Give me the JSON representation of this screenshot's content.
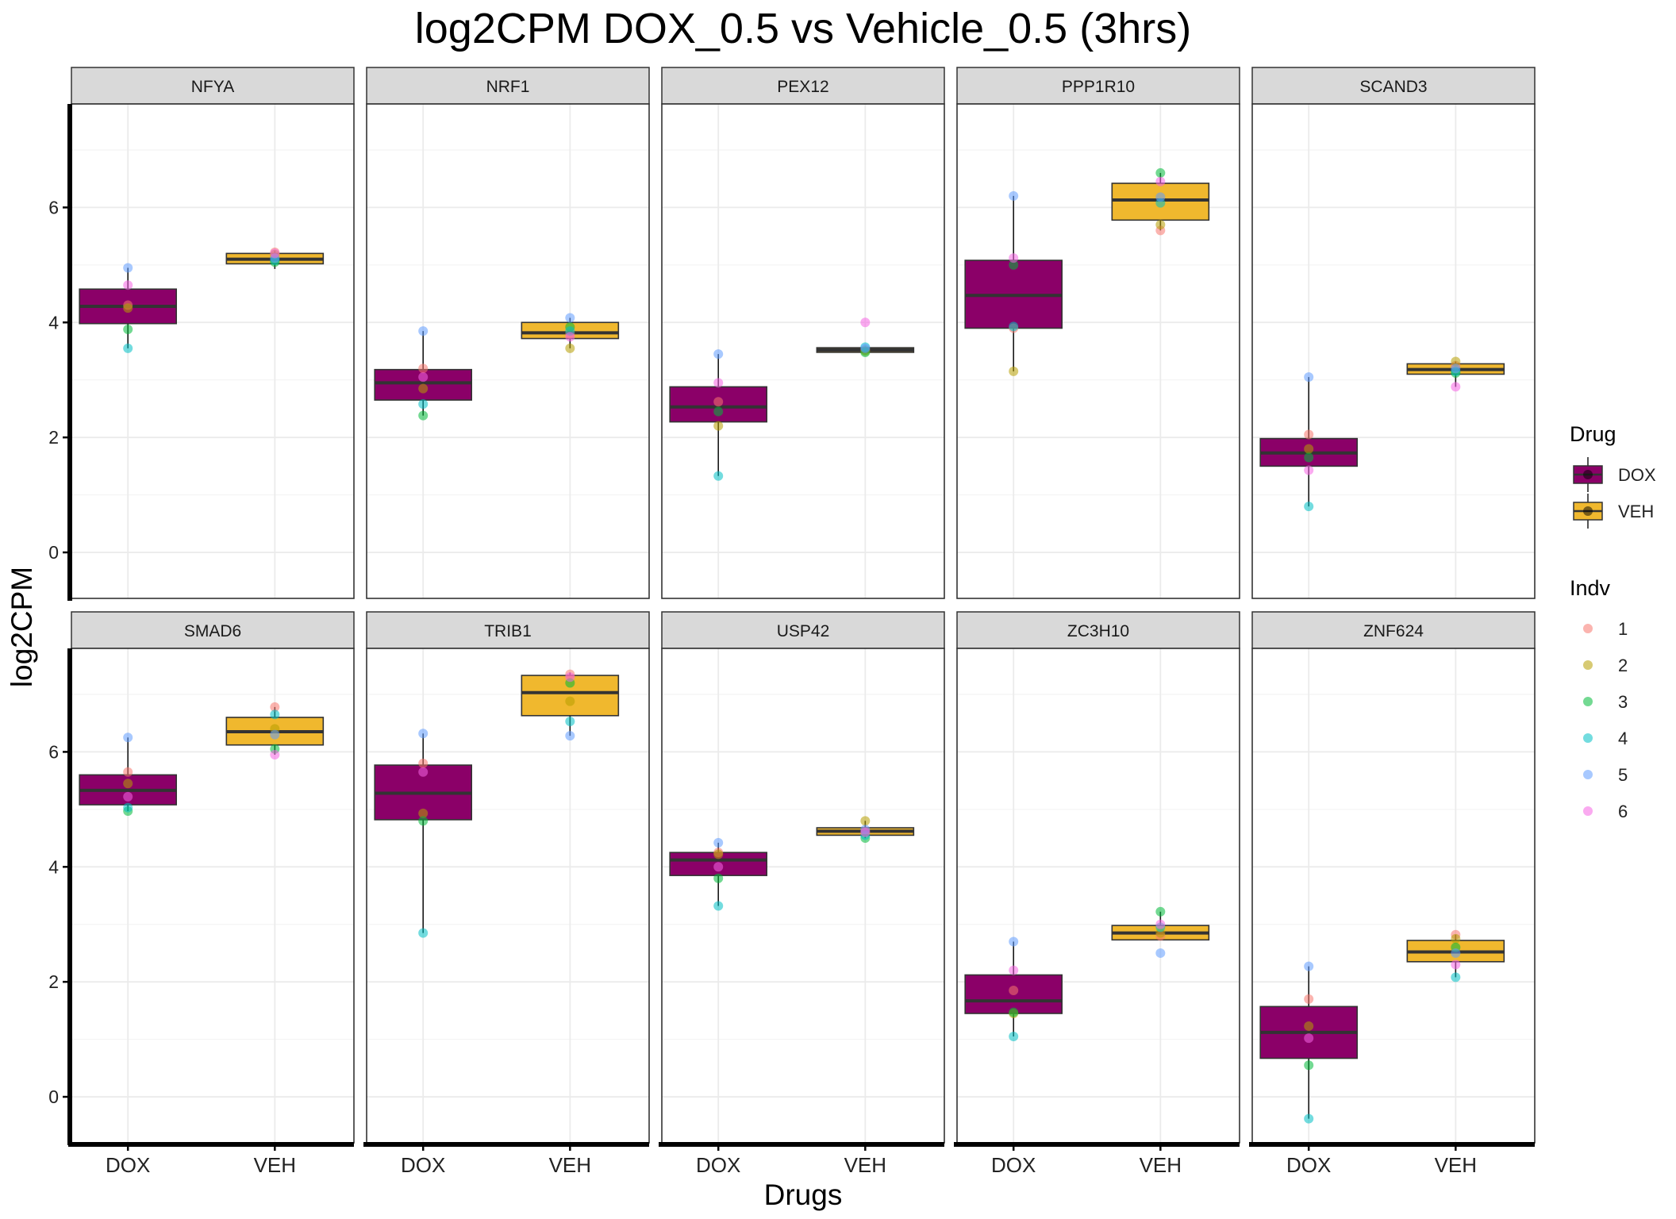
{
  "chart_data": {
    "type": "box",
    "title": "log2CPM DOX_0.5 vs Vehicle_0.5 (3hrs)",
    "xlabel": "Drugs",
    "ylabel": "log2CPM",
    "categories": [
      "DOX",
      "VEH"
    ],
    "ylim": [
      -0.8,
      7.8
    ],
    "yticks": [
      0,
      2,
      4,
      6
    ],
    "grid": true,
    "legend_placement": "right",
    "legends": [
      {
        "title": "Drug",
        "entries": [
          {
            "label": "DOX",
            "color": "#8B0068"
          },
          {
            "label": "VEH",
            "color": "#F0B82E"
          }
        ]
      },
      {
        "title": "Indv",
        "entries": [
          {
            "label": "1",
            "color": "#F8766D"
          },
          {
            "label": "2",
            "color": "#B79F00"
          },
          {
            "label": "3",
            "color": "#00BA38"
          },
          {
            "label": "4",
            "color": "#00BFC4"
          },
          {
            "label": "5",
            "color": "#619CFF"
          },
          {
            "label": "6",
            "color": "#F564E3"
          }
        ]
      }
    ],
    "panels": [
      {
        "gene": "NFYA",
        "DOX": {
          "box": [
            3.55,
            3.98,
            4.28,
            4.58,
            4.95
          ],
          "points": [
            4.3,
            4.25,
            3.88,
            3.55,
            4.95,
            4.65
          ]
        },
        "VEH": {
          "box": [
            4.93,
            5.02,
            5.1,
            5.2,
            5.25
          ],
          "points": [
            5.22,
            5.18,
            5.05,
            5.08,
            5.12,
            5.2
          ]
        }
      },
      {
        "gene": "NRF1",
        "DOX": {
          "box": [
            2.38,
            2.65,
            2.95,
            3.18,
            3.85
          ],
          "points": [
            3.2,
            2.85,
            2.38,
            2.58,
            3.85,
            3.05
          ]
        },
        "VEH": {
          "box": [
            3.55,
            3.72,
            3.82,
            4.0,
            4.08
          ],
          "points": [
            3.8,
            3.55,
            3.92,
            3.85,
            4.08,
            3.75
          ]
        },
        "_": 0
      },
      {
        "gene": "PEX12",
        "DOX": {
          "box": [
            1.33,
            2.27,
            2.53,
            2.88,
            3.45
          ],
          "points": [
            2.62,
            2.2,
            2.45,
            1.33,
            3.45,
            2.95
          ]
        },
        "VEH": {
          "box": [
            3.48,
            3.48,
            3.52,
            3.56,
            3.58
          ],
          "points": [
            3.52,
            3.5,
            3.48,
            3.57,
            3.55,
            4.0
          ]
        }
      },
      {
        "gene": "PPP1R10",
        "DOX": {
          "box": [
            3.15,
            3.9,
            4.47,
            5.08,
            6.2
          ],
          "points": [
            3.9,
            3.15,
            5.0,
            3.93,
            6.2,
            5.12
          ]
        },
        "VEH": {
          "box": [
            5.6,
            5.78,
            6.13,
            6.42,
            6.6
          ],
          "points": [
            5.6,
            5.7,
            6.6,
            6.08,
            6.18,
            6.45
          ]
        }
      },
      {
        "gene": "SCAND3",
        "DOX": {
          "box": [
            0.8,
            1.5,
            1.73,
            1.98,
            3.05
          ],
          "points": [
            2.05,
            1.8,
            1.65,
            0.8,
            3.05,
            1.43
          ]
        },
        "VEH": {
          "box": [
            2.88,
            3.1,
            3.18,
            3.28,
            3.32
          ],
          "points": [
            3.25,
            3.32,
            3.12,
            3.15,
            3.2,
            2.88
          ]
        }
      },
      {
        "gene": "SMAD6",
        "DOX": {
          "box": [
            4.97,
            5.08,
            5.33,
            5.6,
            6.25
          ],
          "points": [
            5.65,
            5.45,
            4.97,
            5.03,
            6.25,
            5.22
          ]
        },
        "VEH": {
          "box": [
            5.95,
            6.12,
            6.35,
            6.6,
            6.78
          ],
          "points": [
            6.78,
            6.4,
            6.05,
            6.65,
            6.3,
            5.95
          ]
        }
      },
      {
        "gene": "TRIB1",
        "DOX": {
          "box": [
            2.85,
            4.82,
            5.28,
            5.77,
            6.32
          ],
          "points": [
            5.8,
            4.93,
            4.8,
            2.85,
            6.32,
            5.65
          ]
        },
        "VEH": {
          "box": [
            6.28,
            6.63,
            7.03,
            7.33,
            7.38
          ],
          "points": [
            7.35,
            6.88,
            7.2,
            6.53,
            6.28,
            7.3
          ]
        }
      },
      {
        "gene": "USP42",
        "DOX": {
          "box": [
            3.32,
            3.85,
            4.12,
            4.25,
            4.42
          ],
          "points": [
            4.25,
            4.22,
            3.8,
            3.32,
            4.42,
            4.0
          ]
        },
        "VEH": {
          "box": [
            4.5,
            4.55,
            4.62,
            4.68,
            4.8
          ],
          "points": [
            4.62,
            4.8,
            4.5,
            4.55,
            4.65,
            4.6
          ]
        }
      },
      {
        "gene": "ZC3H10",
        "DOX": {
          "box": [
            1.05,
            1.45,
            1.67,
            2.12,
            2.7
          ],
          "points": [
            1.85,
            1.45,
            1.47,
            1.05,
            2.7,
            2.2
          ]
        },
        "VEH": {
          "box": [
            2.73,
            2.73,
            2.85,
            2.98,
            3.22
          ],
          "points": [
            2.8,
            2.85,
            3.22,
            2.95,
            2.5,
            3.0
          ]
        }
      },
      {
        "gene": "ZNF624",
        "DOX": {
          "box": [
            -0.38,
            0.67,
            1.12,
            1.57,
            2.27
          ],
          "points": [
            1.7,
            1.23,
            0.55,
            -0.38,
            2.27,
            1.02
          ]
        },
        "VEH": {
          "box": [
            2.08,
            2.35,
            2.52,
            2.72,
            2.82
          ],
          "points": [
            2.82,
            2.75,
            2.6,
            2.08,
            2.5,
            2.3
          ]
        }
      }
    ]
  }
}
